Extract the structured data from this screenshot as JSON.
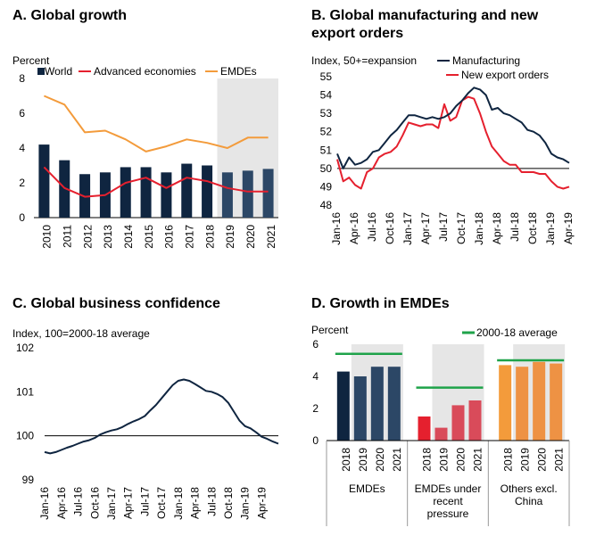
{
  "colors": {
    "navy": "#0f2540",
    "slate": "#2c4766",
    "red": "#e5202e",
    "orange": "#f39b3b",
    "green": "#1fa34a",
    "shade": "#e6e6e6"
  },
  "chart_data": [
    {
      "id": "A",
      "type": "bar",
      "title": "A. Global growth",
      "ylabel": "Percent",
      "ylim": [
        0,
        8
      ],
      "yticks": [
        "0",
        "2",
        "4",
        "6",
        "8"
      ],
      "categories": [
        "2010",
        "2011",
        "2012",
        "2013",
        "2014",
        "2015",
        "2016",
        "2017",
        "2018",
        "2019",
        "2020",
        "2021"
      ],
      "shaded_categories": [
        "2019",
        "2020",
        "2021"
      ],
      "series": [
        {
          "name": "World",
          "kind": "bar",
          "values": [
            4.2,
            3.3,
            2.5,
            2.6,
            2.9,
            2.9,
            2.6,
            3.1,
            3.0,
            2.6,
            2.7,
            2.8
          ]
        },
        {
          "name": "Advanced economies",
          "kind": "line",
          "values": [
            2.9,
            1.7,
            1.2,
            1.3,
            2.0,
            2.3,
            1.7,
            2.3,
            2.1,
            1.7,
            1.5,
            1.5
          ]
        },
        {
          "name": "EMDEs",
          "kind": "line",
          "values": [
            7.0,
            6.5,
            4.9,
            5.0,
            4.5,
            3.8,
            4.1,
            4.5,
            4.3,
            4.0,
            4.6,
            4.6
          ]
        }
      ]
    },
    {
      "id": "B",
      "type": "line",
      "title": "B. Global manufacturing and new export orders",
      "title_lines": [
        "B. Global manufacturing and new",
        "export orders"
      ],
      "ylabel": "Index, 50+=expansion",
      "ylim": [
        48,
        55
      ],
      "yticks": [
        "48",
        "49",
        "50",
        "51",
        "52",
        "53",
        "54",
        "55"
      ],
      "reference_line": 50,
      "xticks": [
        "Jan-16",
        "Apr-16",
        "Jul-16",
        "Oct-16",
        "Jan-17",
        "Apr-17",
        "Jul-17",
        "Oct-17",
        "Jan-18",
        "Apr-18",
        "Jul-18",
        "Oct-18",
        "Jan-19",
        "Apr-19"
      ],
      "series": [
        {
          "name": "Manufacturing",
          "values": [
            50.8,
            50.0,
            50.6,
            50.2,
            50.3,
            50.5,
            50.9,
            51.0,
            51.4,
            51.8,
            52.1,
            52.5,
            52.9,
            52.9,
            52.8,
            52.7,
            52.8,
            52.7,
            52.8,
            53.0,
            53.4,
            53.7,
            54.1,
            54.4,
            54.3,
            54.0,
            53.2,
            53.3,
            53.0,
            52.9,
            52.7,
            52.5,
            52.1,
            52.0,
            51.8,
            51.4,
            50.8,
            50.6,
            50.5,
            50.3
          ]
        },
        {
          "name": "New export orders",
          "values": [
            50.5,
            49.3,
            49.5,
            49.1,
            48.9,
            49.8,
            50.0,
            50.6,
            50.8,
            50.9,
            51.2,
            51.8,
            52.5,
            52.4,
            52.3,
            52.4,
            52.4,
            52.2,
            53.5,
            52.6,
            52.8,
            53.7,
            53.9,
            53.8,
            53.0,
            52.0,
            51.2,
            50.8,
            50.4,
            50.2,
            50.2,
            49.8,
            49.8,
            49.8,
            49.7,
            49.7,
            49.3,
            49.0,
            48.9,
            49.0
          ]
        }
      ]
    },
    {
      "id": "C",
      "type": "line",
      "title": "C. Global business confidence",
      "ylabel": "Index, 100=2000-18 average",
      "ylim": [
        99,
        102
      ],
      "yticks": [
        "99",
        "100",
        "101",
        "102"
      ],
      "reference_line": 100,
      "xticks": [
        "Jan-16",
        "Apr-16",
        "Jul-16",
        "Oct-16",
        "Jan-17",
        "Apr-17",
        "Jul-17",
        "Oct-17",
        "Jan-18",
        "Apr-18",
        "Jul-18",
        "Oct-18",
        "Jan-19",
        "Apr-19"
      ],
      "series": [
        {
          "name": "",
          "values": [
            99.63,
            99.6,
            99.63,
            99.68,
            99.73,
            99.77,
            99.82,
            99.87,
            99.9,
            99.95,
            100.03,
            100.08,
            100.12,
            100.15,
            100.2,
            100.27,
            100.33,
            100.38,
            100.45,
            100.58,
            100.7,
            100.85,
            101.0,
            101.15,
            101.25,
            101.28,
            101.25,
            101.18,
            101.1,
            101.02,
            101.0,
            100.95,
            100.88,
            100.75,
            100.55,
            100.35,
            100.22,
            100.17,
            100.08,
            99.98,
            99.93,
            99.87,
            99.82
          ]
        }
      ]
    },
    {
      "id": "D",
      "type": "bar",
      "title": "D. Growth in EMDEs",
      "ylabel": "Percent",
      "ylim": [
        0,
        6
      ],
      "yticks": [
        "0",
        "2",
        "4",
        "6"
      ],
      "legend": [
        "2000-18 average"
      ],
      "groups": [
        {
          "label": "EMDEs",
          "categories": [
            "2018",
            "2019",
            "2020",
            "2021"
          ],
          "values": [
            4.3,
            4.0,
            4.6,
            4.6
          ],
          "average": 5.4
        },
        {
          "label": "EMDEs under recent pressure",
          "label_lines": [
            "EMDEs under",
            "recent",
            "pressure"
          ],
          "categories": [
            "2018",
            "2019",
            "2020",
            "2021"
          ],
          "values": [
            1.5,
            0.8,
            2.2,
            2.5
          ],
          "average": 3.3
        },
        {
          "label": "Others excl. China",
          "label_lines": [
            "Others excl.",
            "China"
          ],
          "categories": [
            "2018",
            "2019",
            "2020",
            "2021"
          ],
          "values": [
            4.7,
            4.6,
            4.9,
            4.8
          ],
          "average": 5.0
        }
      ]
    }
  ]
}
